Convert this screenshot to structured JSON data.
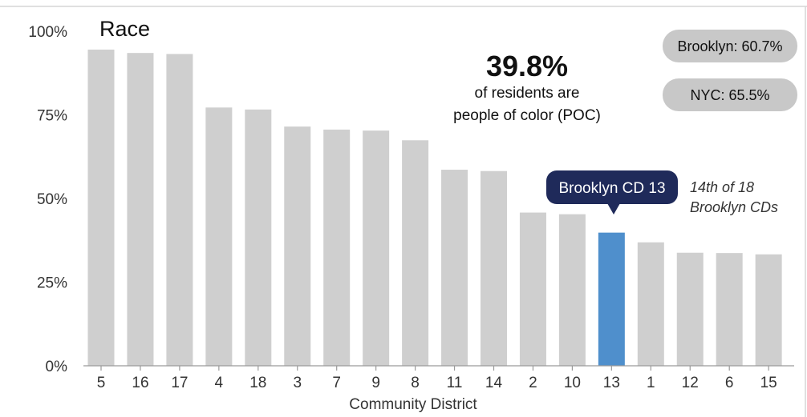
{
  "chart_data": {
    "type": "bar",
    "title": "Race",
    "xlabel": "Community District",
    "ylabel": "",
    "ylim": [
      0,
      100
    ],
    "yticks": [
      "0%",
      "25%",
      "50%",
      "75%",
      "100%"
    ],
    "categories": [
      "5",
      "16",
      "17",
      "4",
      "18",
      "3",
      "7",
      "9",
      "8",
      "11",
      "14",
      "2",
      "10",
      "13",
      "1",
      "12",
      "6",
      "15"
    ],
    "values": [
      94.5,
      93.5,
      93.2,
      77.2,
      76.6,
      71.5,
      70.6,
      70.3,
      67.4,
      58.6,
      58.2,
      45.8,
      45.3,
      39.8,
      36.9,
      33.8,
      33.7,
      33.3
    ],
    "highlight_index": 13,
    "colors": {
      "bar": "#cfcfcf",
      "highlight": "#4f8fcc",
      "callout": "#1f2a5a",
      "pill": "#c8c8c8"
    },
    "grid": false
  },
  "stat": {
    "value": "39.8%",
    "line1": "of residents are",
    "line2": "people of color (POC)"
  },
  "pills": {
    "brooklyn": "Brooklyn: 60.7%",
    "nyc": "NYC: 65.5%"
  },
  "callout": {
    "label": "Brooklyn CD 13",
    "rank_line1": "14th of 18",
    "rank_line2": "Brooklyn CDs"
  }
}
